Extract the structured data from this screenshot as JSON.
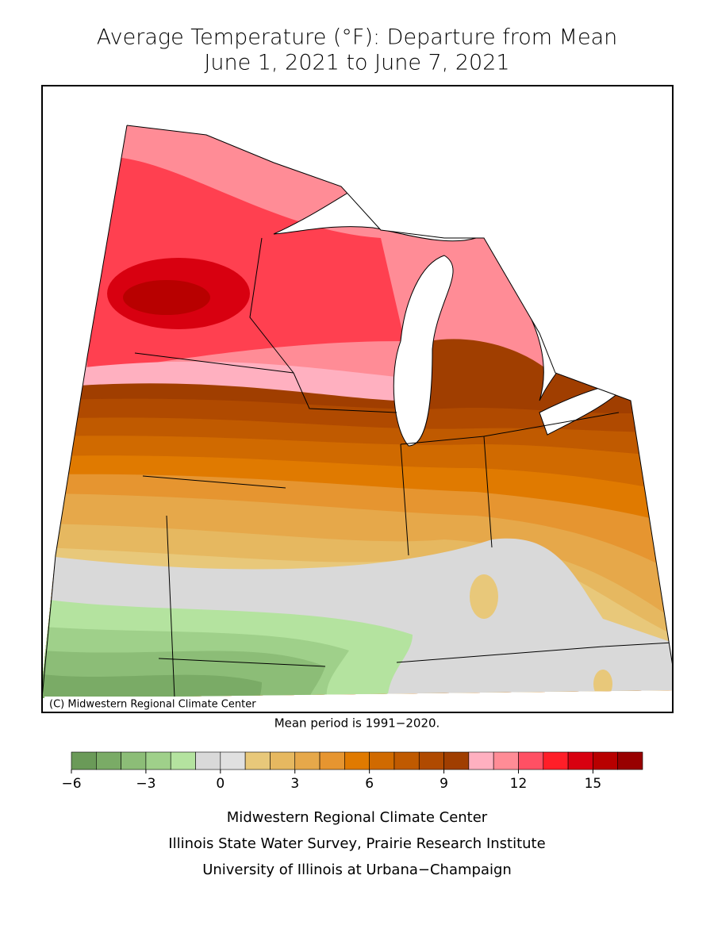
{
  "title": [
    "Average Temperature (°F): Departure from Mean",
    "June 1, 2021 to June 7, 2021"
  ],
  "copyright": "(C) Midwestern Regional Climate Center",
  "mean_period": "Mean period is 1991−2020.",
  "colorbar": {
    "levels": [
      -6,
      -5,
      -4,
      -3,
      -2,
      -1,
      0,
      1,
      2,
      3,
      4,
      5,
      6,
      7,
      8,
      9,
      10,
      11,
      12,
      13,
      14,
      15,
      16,
      17
    ],
    "colors": [
      "#6a9a58",
      "#7aab66",
      "#8cbd77",
      "#9fd08a",
      "#b4e39f",
      "#d9d9d9",
      "#e0e0e0",
      "#e8c87a",
      "#e6b860",
      "#e6a84a",
      "#e69530",
      "#e07a00",
      "#d06a00",
      "#c05a00",
      "#b04a00",
      "#a03e00",
      "#ffb0c0",
      "#ff8c96",
      "#ff5064",
      "#ff1e28",
      "#d80010",
      "#b80000",
      "#980000",
      "#700000"
    ],
    "ticks": [
      {
        "value": -6,
        "label": "−6"
      },
      {
        "value": -3,
        "label": "−3"
      },
      0,
      3,
      6,
      9,
      12,
      15
    ]
  },
  "credits": [
    "Midwestern Regional Climate Center",
    "Illinois State Water Survey, Prairie Research Institute",
    "University of Illinois at Urbana−Champaign"
  ]
}
